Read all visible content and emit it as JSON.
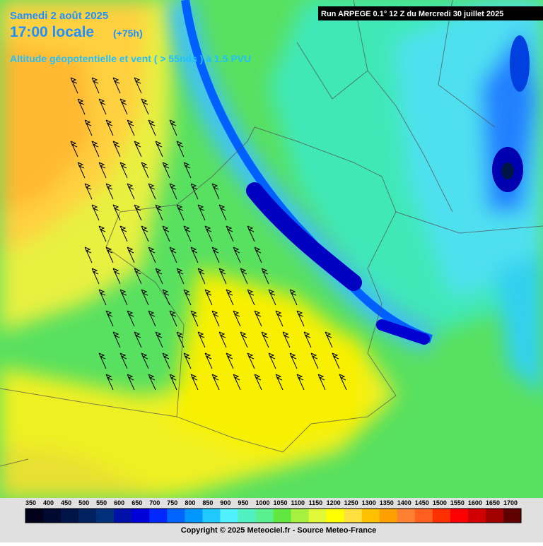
{
  "header": {
    "date": "Samedi 2 août 2025",
    "time": "17:00 locale",
    "lead": "(+75h)",
    "subtitle": "Altitude géopotentielle et vent ( > 55nds ) à 1.5 PVU",
    "run": "Run ARPEGE 0.1° 12 Z du Mercredi 30 juillet 2025"
  },
  "legend": {
    "items": [
      {
        "label": "350",
        "color": "#00001a"
      },
      {
        "label": "400",
        "color": "#000a30"
      },
      {
        "label": "450",
        "color": "#001448"
      },
      {
        "label": "500",
        "color": "#002260"
      },
      {
        "label": "550",
        "color": "#00307a"
      },
      {
        "label": "600",
        "color": "#0010a8"
      },
      {
        "label": "650",
        "color": "#0000d8"
      },
      {
        "label": "700",
        "color": "#0028ff"
      },
      {
        "label": "750",
        "color": "#0064ff"
      },
      {
        "label": "800",
        "color": "#0096ff"
      },
      {
        "label": "850",
        "color": "#20c8ff"
      },
      {
        "label": "900",
        "color": "#50f0ff"
      },
      {
        "label": "950",
        "color": "#50f0c0"
      },
      {
        "label": "1000",
        "color": "#58f090"
      },
      {
        "label": "1050",
        "color": "#60e840"
      },
      {
        "label": "1100",
        "color": "#a8f040"
      },
      {
        "label": "1150",
        "color": "#e0f838"
      },
      {
        "label": "1200",
        "color": "#ffff00"
      },
      {
        "label": "1250",
        "color": "#ffe040"
      },
      {
        "label": "1300",
        "color": "#ffc000"
      },
      {
        "label": "1350",
        "color": "#ffa000"
      },
      {
        "label": "1400",
        "color": "#ff8030"
      },
      {
        "label": "1450",
        "color": "#ff6020"
      },
      {
        "label": "1500",
        "color": "#ff3000"
      },
      {
        "label": "1550",
        "color": "#ff0000"
      },
      {
        "label": "1600",
        "color": "#d00000"
      },
      {
        "label": "1650",
        "color": "#a00000"
      },
      {
        "label": "1700",
        "color": "#600000"
      }
    ]
  },
  "footer": {
    "copyright": "Copyright © 2025 Meteociel.fr - Source Meteo-France"
  }
}
